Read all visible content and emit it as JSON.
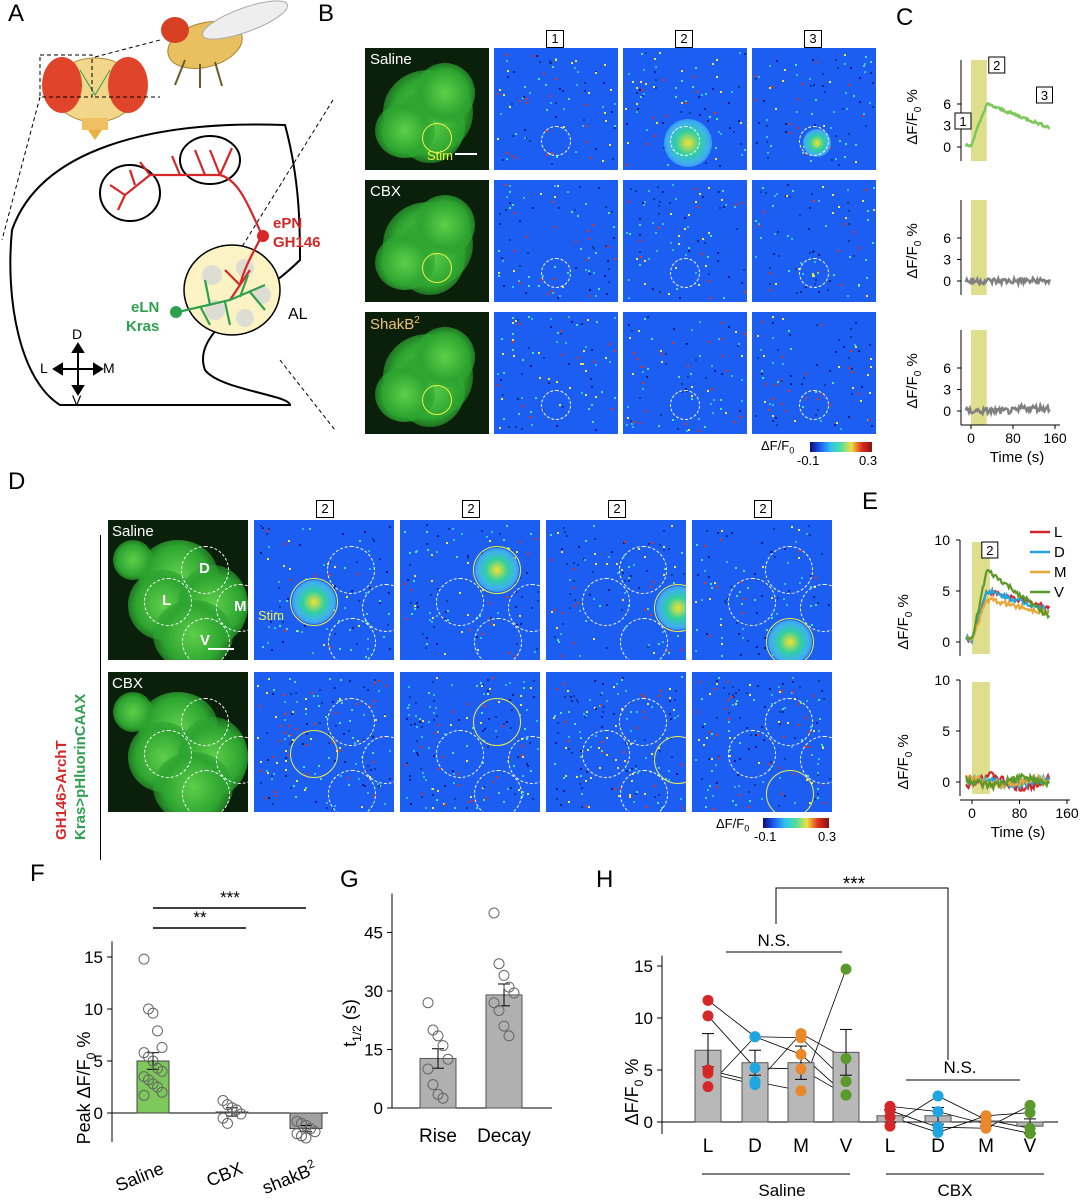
{
  "panels": {
    "A": "A",
    "B": "B",
    "C": "C",
    "D": "D",
    "E": "E",
    "F": "F",
    "G": "G",
    "H": "H"
  },
  "panelA": {
    "ePN": "ePN",
    "GH146": "GH146",
    "eLN": "eLN",
    "Kras": "Kras",
    "AL": "AL",
    "compass": {
      "D": "D",
      "L": "L",
      "M": "M",
      "V": "V"
    }
  },
  "panelB": {
    "rows": [
      "Saline",
      "CBX",
      "ShakB2"
    ],
    "stim": "Stim",
    "timepoints": [
      "1",
      "2",
      "3"
    ],
    "colorbar": {
      "label": "ΔF/F0",
      "min": "-0.1",
      "max": "0.3"
    }
  },
  "panelC": {
    "ylabel": "ΔF/F0 %",
    "yticks": [
      "0",
      "3",
      "6"
    ],
    "yticks2": [
      "0",
      "3",
      "6"
    ],
    "xticks": [
      "0",
      "80",
      "160"
    ],
    "xlabel": "Time (s)",
    "markers": [
      "1",
      "2",
      "3"
    ],
    "colors": {
      "saline": "#7cc85a",
      "ctrl": "#808080",
      "stim": "#dede8c"
    }
  },
  "panelD": {
    "rows": [
      "Saline",
      "CBX"
    ],
    "glom": {
      "D": "D",
      "L": "L",
      "M": "M",
      "V": "V"
    },
    "ylabel_red": "GH146>ArchT",
    "ylabel_green": "Kras>pHluorinCAAX",
    "stim": "Stim",
    "timepoint": "2",
    "colorbar": {
      "label": "ΔF/F0",
      "min": "-0.1",
      "max": "0.3"
    }
  },
  "panelE": {
    "ylabel": "ΔF/F0 %",
    "yticks": [
      "0",
      "5",
      "10"
    ],
    "xticks": [
      "0",
      "80",
      "160"
    ],
    "xlabel": "Time (s)",
    "marker": "2",
    "legend": [
      {
        "name": "L",
        "color": "#d62728"
      },
      {
        "name": "D",
        "color": "#1fa6e0"
      },
      {
        "name": "M",
        "color": "#e8a838"
      },
      {
        "name": "V",
        "color": "#5b9a2a"
      }
    ]
  },
  "chart_data": [
    {
      "panel": "F",
      "type": "bar",
      "ylabel": "Peak ΔF/F0 %",
      "categories": [
        "Saline",
        "CBX",
        "shakB2"
      ],
      "values": [
        5.0,
        0.1,
        -1.5
      ],
      "errors": [
        0.8,
        0.4,
        0.3
      ],
      "colors": [
        "#7cc85a",
        "#ffffff",
        "#a0a0a0"
      ],
      "points": [
        [
          14.8,
          10.0,
          9.6,
          7.9,
          6.3,
          5.8,
          5.4,
          5.0,
          4.3,
          4.0,
          3.5,
          3.2,
          2.8,
          2.5,
          2.0,
          1.7
        ],
        [
          1.2,
          0.8,
          0.5,
          0.3,
          -0.1,
          -0.5,
          -1.0
        ],
        [
          -0.8,
          -1.0,
          -1.2,
          -1.5,
          -1.8,
          -2.0,
          -2.2,
          -2.4
        ]
      ],
      "yticks": [
        "0",
        "5",
        "10",
        "15"
      ],
      "ylim": [
        -2.5,
        16
      ],
      "significance": [
        "**",
        "***"
      ]
    },
    {
      "panel": "G",
      "type": "bar",
      "ylabel": "t1/2 (s)",
      "categories": [
        "Rise",
        "Decay"
      ],
      "values": [
        12.7,
        29.0
      ],
      "errors": [
        2.5,
        2.8
      ],
      "points": [
        [
          27.0,
          20.0,
          18.5,
          16.0,
          12.5,
          10.0,
          6.0,
          3.5,
          2.5
        ],
        [
          50.0,
          37.0,
          34.0,
          31.0,
          29.5,
          27.0,
          25.0,
          21.0,
          18.5
        ]
      ],
      "yticks": [
        "0",
        "15",
        "30",
        "45"
      ],
      "ylim": [
        0,
        55
      ]
    },
    {
      "panel": "H",
      "type": "bar",
      "ylabel": "ΔF/F0 %",
      "categories": [
        "L",
        "D",
        "M",
        "V"
      ],
      "groups": [
        "Saline",
        "CBX"
      ],
      "series": [
        {
          "name": "Saline",
          "values": [
            6.9,
            5.7,
            5.7,
            6.7
          ],
          "errors": [
            1.6,
            1.2,
            1.6,
            2.2
          ]
        },
        {
          "name": "CBX",
          "values": [
            0.6,
            0.6,
            0.1,
            -0.4
          ],
          "errors": [
            0.6,
            0.8,
            0.5,
            0.7
          ]
        }
      ],
      "points": {
        "Saline": [
          [
            11.7,
            10.2,
            5.0,
            4.7,
            3.4
          ],
          [
            8.2,
            8.2,
            5.2,
            3.9,
            3.6
          ],
          [
            8.5,
            8.1,
            6.5,
            5.1,
            3.0
          ],
          [
            14.7,
            6.1,
            3.9,
            2.6,
            2.6
          ]
        ],
        "CBX": [
          [
            1.5,
            1.1,
            0.5,
            -0.4
          ],
          [
            2.5,
            1.0,
            -0.5,
            -1.0
          ],
          [
            0.6,
            0.2,
            -0.2,
            -0.6
          ],
          [
            1.6,
            0.9,
            -0.6,
            -1.1
          ]
        ]
      },
      "colors": {
        "L": "#d62728",
        "D": "#1fa6e0",
        "M": "#e8882a",
        "V": "#5b9a2a"
      },
      "yticks": [
        "0",
        "5",
        "10",
        "15"
      ],
      "ylim": [
        -1.5,
        16
      ],
      "significance": [
        "N.S.",
        "N.S.",
        "***"
      ]
    }
  ]
}
